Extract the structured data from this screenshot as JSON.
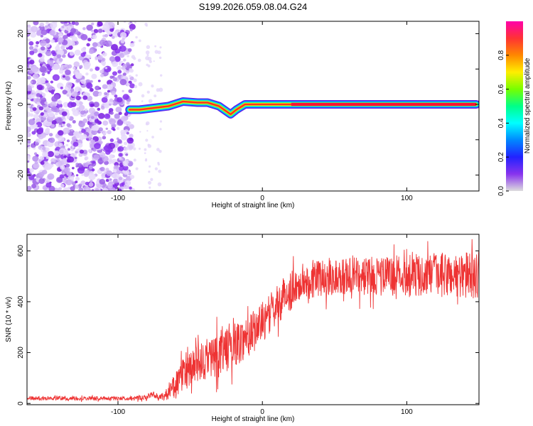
{
  "title": "S199.2026.059.08.04.G24",
  "colors": {
    "snr_line": "#ee3333",
    "colorbar_stops": [
      "#ff00aa",
      "#ff3333",
      "#ff8800",
      "#ffee00",
      "#77ff00",
      "#00ff88",
      "#00ffff",
      "#0088ff",
      "#2222ff",
      "#8833ee",
      "#dddddd"
    ]
  },
  "chart_data": [
    {
      "type": "heatmap",
      "id": "spectrogram",
      "title": "",
      "xlabel": "Height of straight line (km)",
      "ylabel": "Frequency (Hz)",
      "xlim": [
        -163,
        150
      ],
      "ylim": [
        -24.5,
        23.5
      ],
      "xticks": [
        -100,
        0,
        100
      ],
      "yticks": [
        -20,
        -10,
        0,
        10,
        20
      ],
      "colorbar": {
        "label": "Normalized spectral amplitude",
        "range": [
          0,
          1
        ],
        "ticks": [
          "0.0",
          "0.2",
          "0.4",
          "0.6",
          "0.8"
        ]
      },
      "noise_region_x": [
        -163,
        -90
      ],
      "signal_track": [
        {
          "x": -92,
          "f": -1.5
        },
        {
          "x": -85,
          "f": -1.5
        },
        {
          "x": -75,
          "f": -1.0
        },
        {
          "x": -65,
          "f": -0.5
        },
        {
          "x": -55,
          "f": 0.8
        },
        {
          "x": -45,
          "f": 0.5
        },
        {
          "x": -38,
          "f": 0.5
        },
        {
          "x": -30,
          "f": -0.5
        },
        {
          "x": -22,
          "f": -2.8
        },
        {
          "x": -18,
          "f": -1.5
        },
        {
          "x": -12,
          "f": 0.0
        },
        {
          "x": 0,
          "f": 0.0
        },
        {
          "x": 20,
          "f": 0.0
        },
        {
          "x": 60,
          "f": 0.0
        },
        {
          "x": 100,
          "f": 0.0
        },
        {
          "x": 148,
          "f": 0.0
        }
      ]
    },
    {
      "type": "line",
      "id": "snr",
      "title": "",
      "xlabel": "Height of straight line (km)",
      "ylabel": "SNR (10 * v/v)",
      "xlim": [
        -163,
        150
      ],
      "ylim": [
        -5,
        665
      ],
      "xticks": [
        -100,
        0,
        100
      ],
      "yticks": [
        0,
        200,
        400,
        600
      ],
      "trend": [
        {
          "x": -163,
          "y": 20
        },
        {
          "x": -90,
          "y": 20
        },
        {
          "x": -80,
          "y": 22
        },
        {
          "x": -76,
          "y": 40
        },
        {
          "x": -72,
          "y": 22
        },
        {
          "x": -65,
          "y": 40
        },
        {
          "x": -55,
          "y": 110
        },
        {
          "x": -45,
          "y": 150
        },
        {
          "x": -35,
          "y": 185
        },
        {
          "x": -25,
          "y": 210
        },
        {
          "x": -15,
          "y": 245
        },
        {
          "x": -5,
          "y": 290
        },
        {
          "x": 5,
          "y": 350
        },
        {
          "x": 15,
          "y": 420
        },
        {
          "x": 25,
          "y": 470
        },
        {
          "x": 35,
          "y": 490
        },
        {
          "x": 50,
          "y": 500
        },
        {
          "x": 70,
          "y": 500
        },
        {
          "x": 90,
          "y": 505
        },
        {
          "x": 110,
          "y": 505
        },
        {
          "x": 130,
          "y": 505
        },
        {
          "x": 150,
          "y": 505
        }
      ],
      "noise_amplitude": [
        {
          "x": -163,
          "a": 8
        },
        {
          "x": -90,
          "a": 8
        },
        {
          "x": -70,
          "a": 12
        },
        {
          "x": -55,
          "a": 70
        },
        {
          "x": -30,
          "a": 90
        },
        {
          "x": 0,
          "a": 80
        },
        {
          "x": 30,
          "a": 75
        },
        {
          "x": 80,
          "a": 75
        },
        {
          "x": 150,
          "a": 95
        }
      ]
    }
  ]
}
